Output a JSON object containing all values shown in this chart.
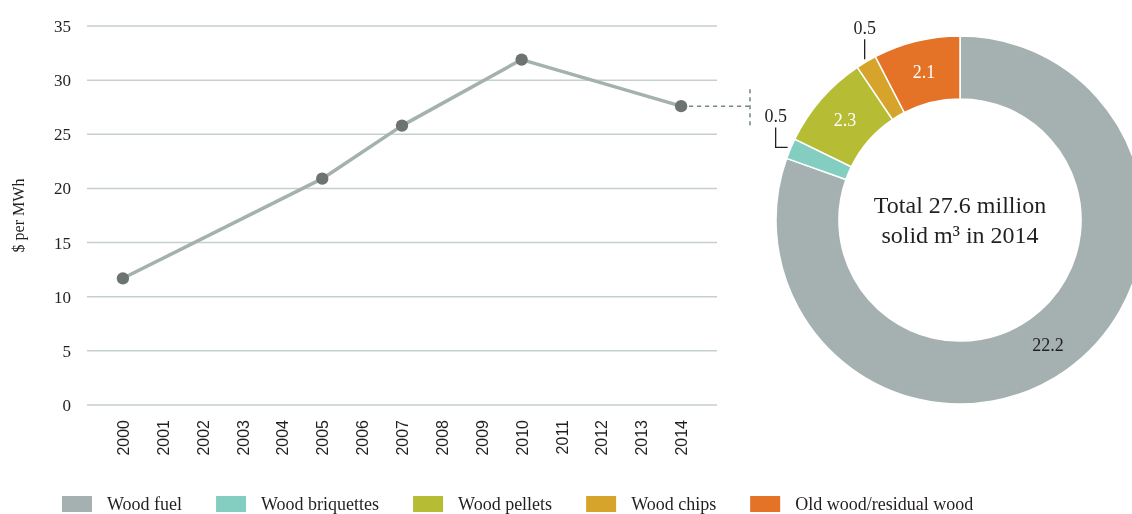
{
  "chart_data": [
    {
      "type": "line",
      "ylabel": "$ per MWh",
      "x": [
        2000,
        2005,
        2007,
        2010,
        2014
      ],
      "values": [
        11.7,
        20.9,
        25.8,
        31.9,
        27.6
      ],
      "color": "#a5b1ae",
      "xlim": [
        1999.1,
        2014.9
      ],
      "xticks": [
        2000,
        2001,
        2002,
        2003,
        2004,
        2005,
        2006,
        2007,
        2008,
        2009,
        2010,
        2011,
        2012,
        2013,
        2014
      ],
      "ylim": [
        0,
        35
      ],
      "yticks": [
        0,
        5,
        10,
        15,
        20,
        25,
        30,
        35
      ],
      "grid": "y",
      "marker": "circle",
      "line_style": "solid"
    },
    {
      "type": "donut",
      "categories": [
        "Wood fuel",
        "Wood briquettes",
        "Wood pellets",
        "Wood chips",
        "Old wood/residual wood"
      ],
      "values": [
        22.2,
        0.5,
        2.3,
        0.5,
        2.1
      ],
      "colors": [
        "#a4b1b0",
        "#84cdc1",
        "#b6bd34",
        "#d7a42b",
        "#e47327"
      ],
      "data_labels": true,
      "legend": "bottom",
      "annotations": [
        "Total 27.6 million solid m³ in 2014"
      ]
    }
  ]
}
